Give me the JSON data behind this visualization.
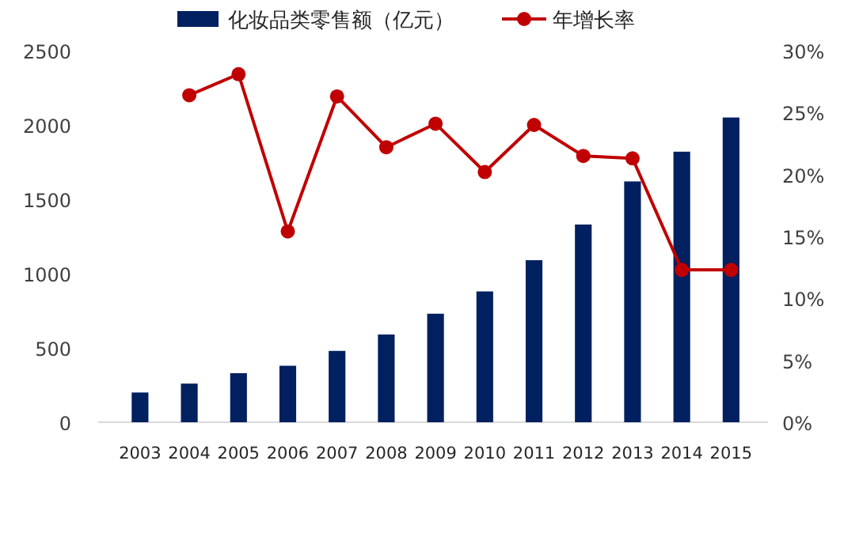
{
  "chart_data": {
    "type": "bar",
    "categories": [
      "2003",
      "2004",
      "2005",
      "2006",
      "2007",
      "2008",
      "2009",
      "2010",
      "2011",
      "2012",
      "2013",
      "2014",
      "2015"
    ],
    "series": [
      {
        "name": "化妆品类零售额（亿元）",
        "color": "#002060",
        "values": [
          200,
          260,
          330,
          380,
          480,
          590,
          730,
          880,
          1090,
          1330,
          1620,
          1820,
          2050
        ]
      },
      {
        "name": "年增长率",
        "type": "line",
        "axis": "y2",
        "color": "#c00000",
        "marker": "circle",
        "values": [
          null,
          26.4,
          28.1,
          15.4,
          26.3,
          22.2,
          24.1,
          20.2,
          24.0,
          21.5,
          21.3,
          12.3,
          12.3
        ]
      }
    ],
    "ylim": [
      0,
      2500
    ],
    "yticks": [
      0,
      500,
      1000,
      1500,
      2000,
      2500
    ],
    "y2lim": [
      0,
      30
    ],
    "y2ticks": [
      {
        "value": 0,
        "label": "0%"
      },
      {
        "value": 5,
        "label": "5%"
      },
      {
        "value": 10,
        "label": "10%"
      },
      {
        "value": 15,
        "label": "15%"
      },
      {
        "value": 20,
        "label": "20%"
      },
      {
        "value": 25,
        "label": "25%"
      },
      {
        "value": 30,
        "label": "30%"
      }
    ],
    "legend": "top"
  }
}
